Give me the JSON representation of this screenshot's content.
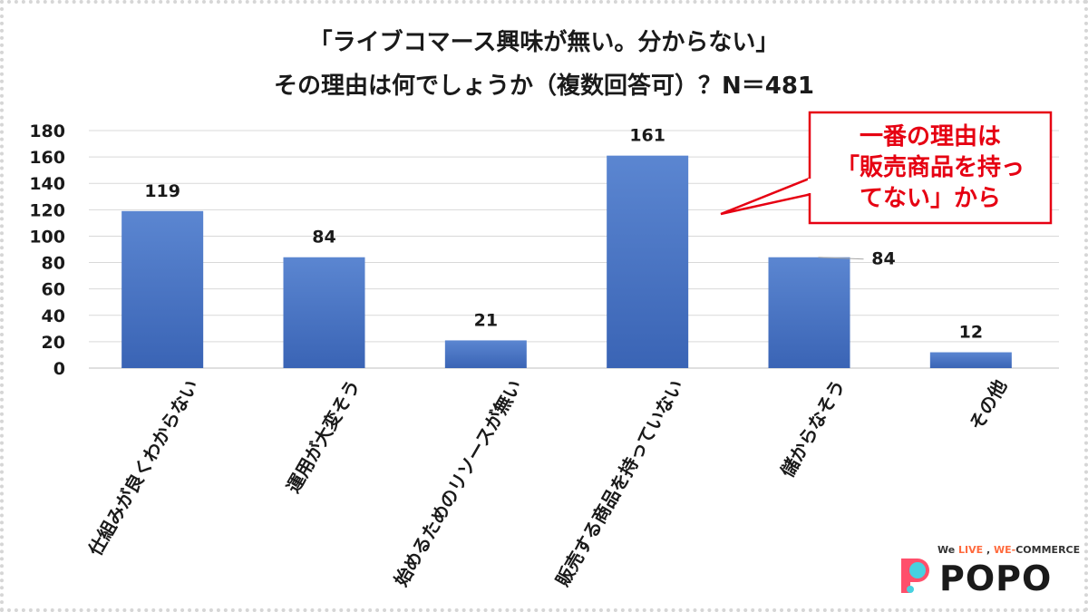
{
  "title_line1": "「ライブコマース興味が無い。分からない」",
  "title_line2": "その理由は何でしょうか（複数回答可）？N＝481",
  "callout": {
    "line1": "一番の理由は",
    "line2": "「販売商品を持っ",
    "line3": "てない」から",
    "color": "#e60012"
  },
  "brand": {
    "tagline_prefix": "We ",
    "tagline_live": "LIVE",
    "tagline_mid": " , ",
    "tagline_we": "WE-",
    "tagline_commerce": "COMMERCE",
    "logo": "POPO"
  },
  "chart_data": {
    "type": "bar",
    "categories": [
      "仕組みが良くわからない",
      "運用が大変そう",
      "始めるためのリソースが無い",
      "販売する商品を持っていない",
      "儲からなそう",
      "その他"
    ],
    "values": [
      119,
      84,
      21,
      161,
      84,
      12
    ],
    "yticks": [
      "0",
      "20",
      "40",
      "60",
      "80",
      "100",
      "120",
      "140",
      "160",
      "180"
    ],
    "ylim": [
      0,
      180
    ],
    "bar_color": "#4472c4",
    "grid": true
  }
}
